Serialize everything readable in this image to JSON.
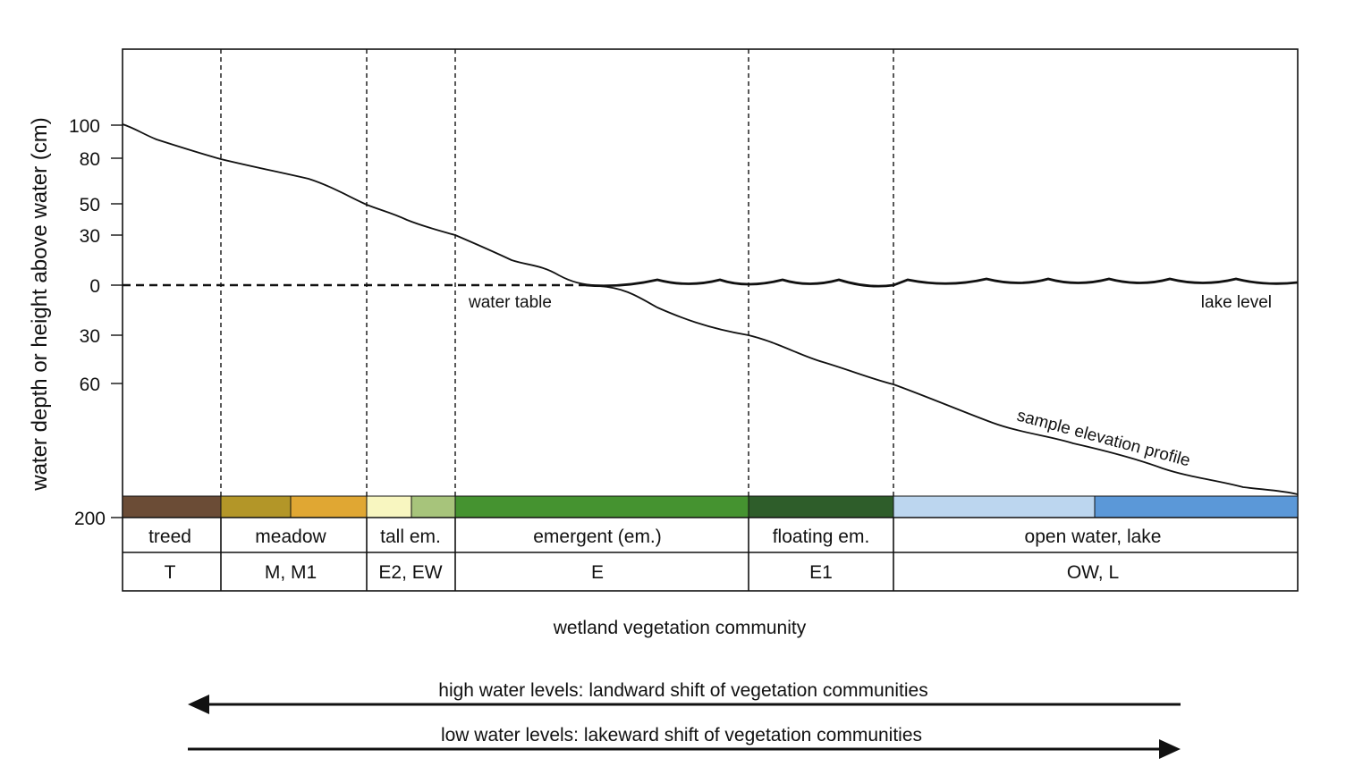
{
  "y_axis": {
    "title": "water depth or height above water (cm)",
    "ticks": [
      {
        "label": "100",
        "value": 100
      },
      {
        "label": "80",
        "value": 80
      },
      {
        "label": "50",
        "value": 50
      },
      {
        "label": "30",
        "value": 30
      },
      {
        "label": "0",
        "value": 0
      },
      {
        "label": "30",
        "value": -30
      },
      {
        "label": "60",
        "value": -60
      },
      {
        "label": "200",
        "value": -200
      }
    ]
  },
  "annotations": {
    "water_table": "water table",
    "lake_level": "lake level",
    "profile": "sample elevation profile"
  },
  "communities": [
    {
      "name": "treed",
      "code": "T",
      "colors": [
        "#6b4c36"
      ]
    },
    {
      "name": "meadow",
      "code": "M, M1",
      "colors": [
        "#b39628",
        "#e0a733"
      ]
    },
    {
      "name": "tall em.",
      "code": "E2, EW",
      "colors": [
        "#f8f6c0",
        "#a7c47b"
      ]
    },
    {
      "name": "emergent (em.)",
      "code": "E",
      "colors": [
        "#459330"
      ]
    },
    {
      "name": "floating em.",
      "code": "E1",
      "colors": [
        "#2e5d2a"
      ]
    },
    {
      "name": "open water, lake",
      "code": "OW, L",
      "colors": [
        "#bcd6ef",
        "#5b98d8"
      ]
    }
  ],
  "x_axis_title": "wetland vegetation community",
  "arrows": {
    "high": "high water levels: landward shift of vegetation communities",
    "low": "low water levels: lakeward shift of vegetation communities"
  }
}
